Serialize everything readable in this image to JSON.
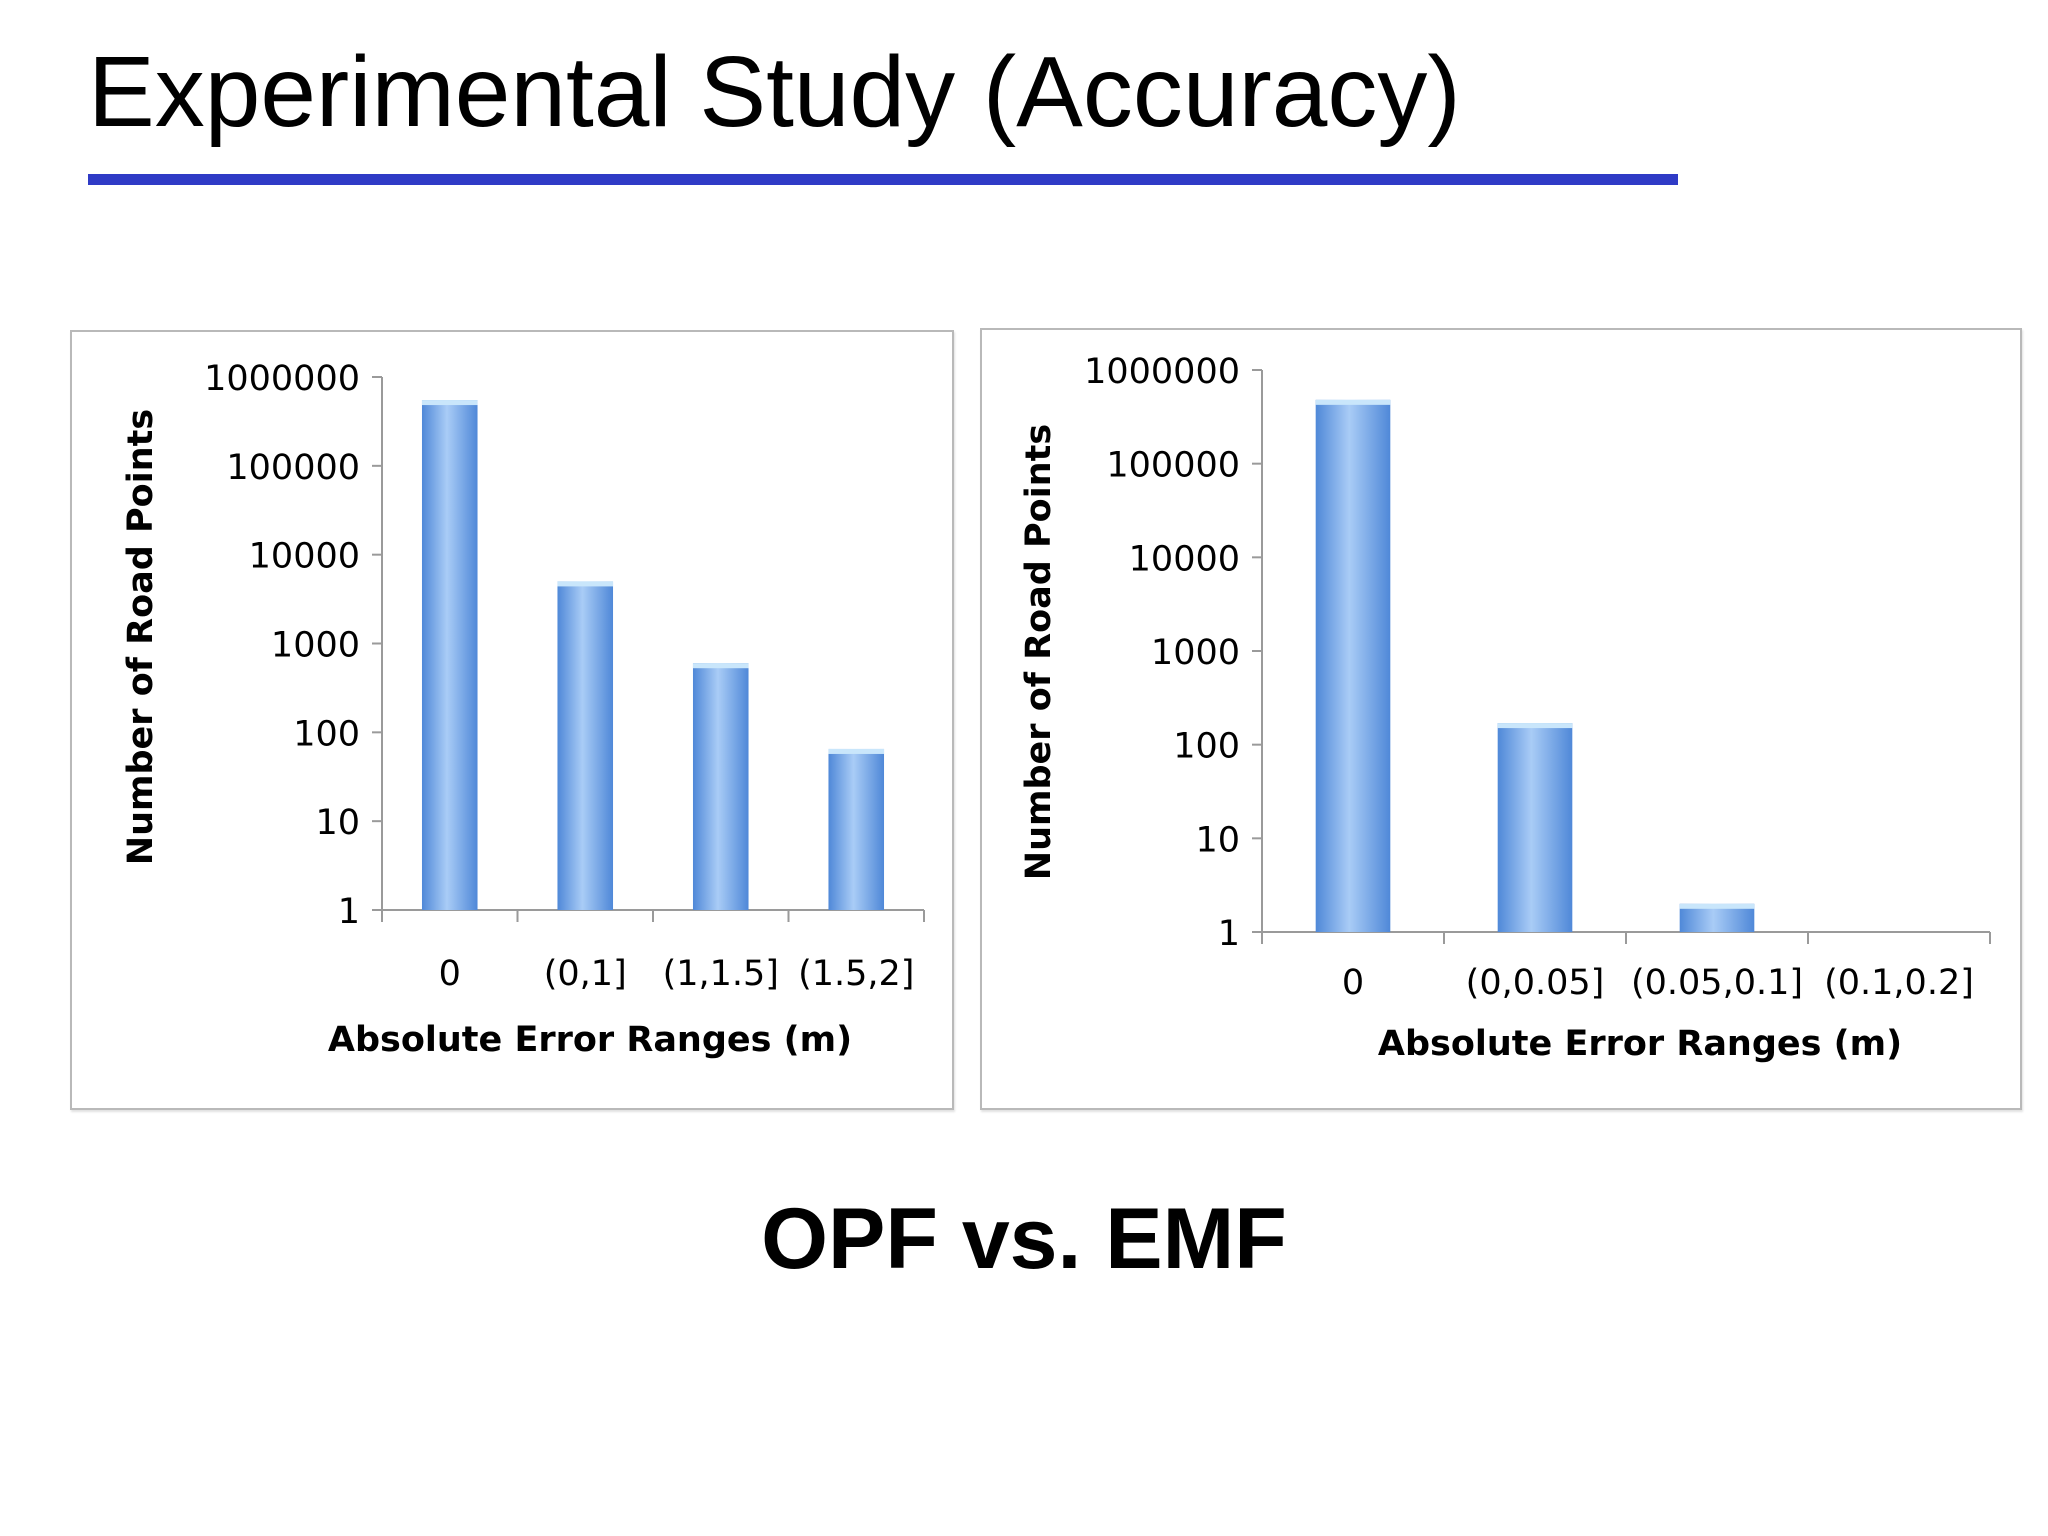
{
  "slide": {
    "title": "Experimental Study (Accuracy)",
    "subtitle": "OPF vs. EMF"
  },
  "colors": {
    "title_rule": "#2f3bc6",
    "bar_light": "#a9ccf6",
    "bar_dark": "#4f88d8",
    "bar_top": "#c9e6fb"
  },
  "chart_data": [
    {
      "type": "bar",
      "xlabel": "Absolute Error Ranges (m)",
      "ylabel": "Number of Road Points",
      "yscale": "log",
      "ylim": [
        1,
        1000000
      ],
      "yticks": [
        "1",
        "10",
        "100",
        "1000",
        "10000",
        "100000",
        "1000000"
      ],
      "categories": [
        "0",
        "(0,1]",
        "(1,1.5]",
        "(1.5,2]"
      ],
      "values": [
        550000,
        5000,
        600,
        65
      ],
      "grid": false,
      "legend": "none"
    },
    {
      "type": "bar",
      "xlabel": "Absolute Error Ranges (m)",
      "ylabel": "Number of Road Points",
      "yscale": "log",
      "ylim": [
        1,
        1000000
      ],
      "yticks": [
        "1",
        "10",
        "100",
        "1000",
        "10000",
        "100000",
        "1000000"
      ],
      "categories": [
        "0",
        "(0,0.05]",
        "(0.05,0.1]",
        "(0.1,0.2]"
      ],
      "values": [
        480000,
        170,
        2,
        0
      ],
      "grid": false,
      "legend": "none"
    }
  ]
}
